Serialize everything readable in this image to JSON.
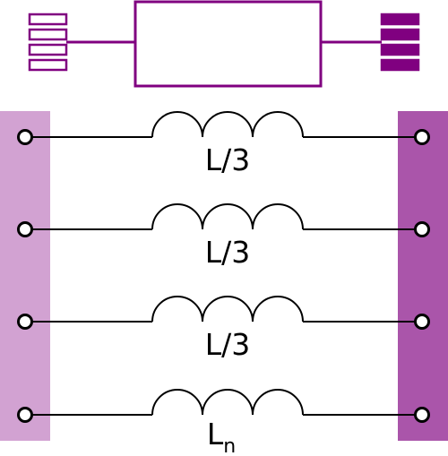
{
  "diagram": {
    "colors": {
      "accent": "#800080",
      "port_left_fill": "#d2a2d2",
      "port_right_fill": "#aa55aa",
      "wire": "#000000",
      "terminal_fill": "#ffffff"
    },
    "header_symbol": {
      "left_connector": {
        "style": "outline",
        "pins": 4
      },
      "right_connector": {
        "style": "filled",
        "pins": 4
      },
      "box": {
        "label": ""
      }
    },
    "branches": [
      {
        "label": "L/3",
        "subscript": ""
      },
      {
        "label": "L/3",
        "subscript": ""
      },
      {
        "label": "L/3",
        "subscript": ""
      },
      {
        "label": "L",
        "subscript": "n"
      }
    ]
  }
}
